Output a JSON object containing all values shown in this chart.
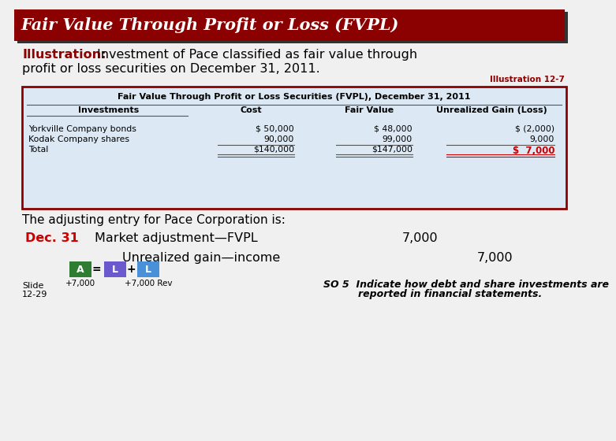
{
  "title": "Fair Value Through Profit or Loss (FVPL)",
  "title_bg": "#8B0000",
  "title_shadow": "#333333",
  "title_color": "#FFFFFF",
  "bg_color": "#F0F0F0",
  "slide_label": "Slide\n12-29",
  "illustration_label": "Illustration:",
  "illus_ref": "Illustration 12-7",
  "table_title": "Fair Value Through Profit or Loss Securities (FVPL), December 31, 2011",
  "table_headers": [
    "Investments",
    "Cost",
    "Fair Value",
    "Unrealized Gain (Loss)"
  ],
  "table_rows": [
    [
      "Yorkville Company bonds",
      "$ 50,000",
      "$ 48,000",
      "$ (2,000)"
    ],
    [
      "Kodak Company shares",
      "90,000",
      "99,000",
      "9,000"
    ],
    [
      "Total",
      "$140,000",
      "$147,000",
      "$  7,000"
    ]
  ],
  "total_color": "#CC0000",
  "table_bg": "#DCE9F5",
  "table_border": "#8B0000",
  "adj_entry_title": "The adjusting entry for Pace Corporation is:",
  "dec31_label": "Dec. 31",
  "dec31_color": "#CC0000",
  "entry_line1_desc": "Market adjustment—FVPL",
  "entry_line1_amt": "7,000",
  "entry_line2_desc": "Unrealized gain—income",
  "entry_line2_amt": "7,000",
  "box_A_label": "A",
  "box_A_color": "#2E7D32",
  "box_L1_label": "L",
  "box_L1_color": "#6A5ACD",
  "box_L2_label": "L",
  "box_L2_color": "#4A90D9",
  "eq_sign": "=",
  "plus_sign": "+",
  "amount_A": "+7,000",
  "amount_L2": "+7,000 Rev",
  "so5_line1": "SO 5  Indicate how debt and share investments are",
  "so5_line2": "reported in financial statements.",
  "so5_color": "#000000"
}
